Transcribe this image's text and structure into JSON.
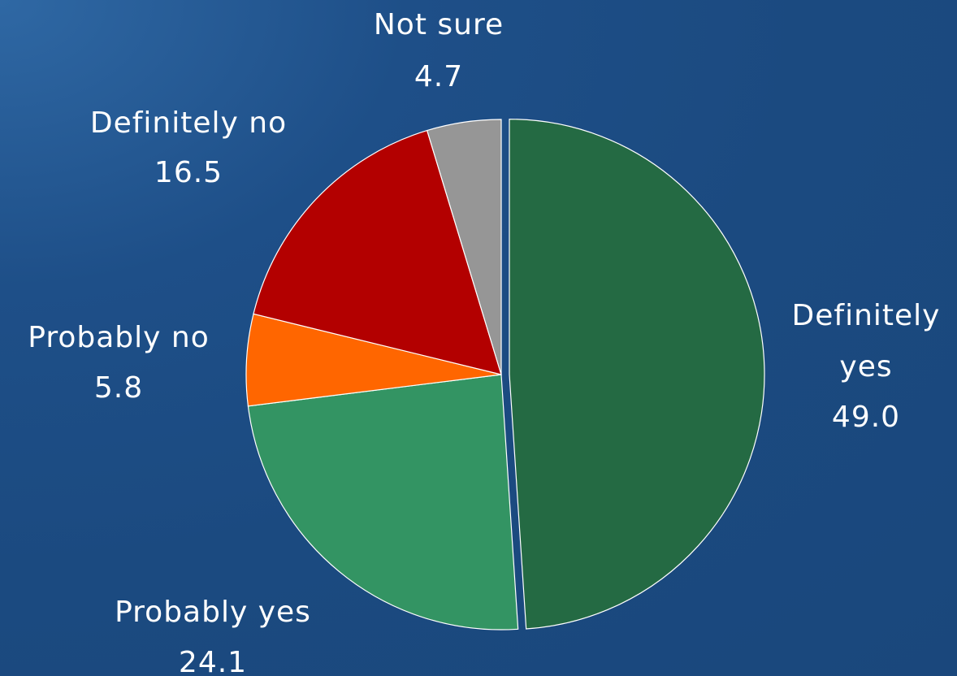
{
  "chart_data": {
    "type": "pie",
    "categories": [
      "Definitely yes",
      "Probably yes",
      "Probably no",
      "Definitely no",
      "Not sure"
    ],
    "values": [
      49.0,
      24.1,
      5.8,
      16.5,
      4.7
    ],
    "value_labels": [
      "49.0",
      "24.1",
      "5.8",
      "16.5",
      "4.7"
    ],
    "colors": [
      "#246a43",
      "#339463",
      "#ff6600",
      "#b30000",
      "#969696"
    ],
    "start_angle": "12 o'clock",
    "direction": "clockwise",
    "exploded": [
      "Definitely yes"
    ],
    "data_labels": {
      "definitely_yes": {
        "name_line1": "Definitely",
        "name_line2": "yes",
        "value": "49.0"
      },
      "probably_yes": {
        "name": "Probably yes",
        "value": "24.1"
      },
      "probably_no": {
        "name": "Probably no",
        "value": "5.8"
      },
      "definitely_no": {
        "name": "Definitely no",
        "value": "16.5"
      },
      "not_sure": {
        "name": "Not sure",
        "value": "4.7"
      }
    }
  }
}
